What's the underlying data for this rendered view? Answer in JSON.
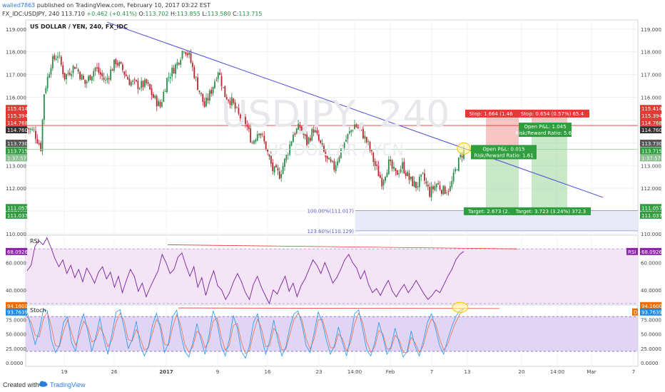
{
  "header": {
    "user": "walled7863",
    "published": "published on TradingView.com, February 10, 2017 03:22 EST",
    "symbol": "FX_IDC:USDJPY, 240",
    "last": "113.710",
    "change": "+0.462 (+0.41%)",
    "o": "113.702",
    "h": "113.855",
    "l": "113.580",
    "c": "113.715"
  },
  "footer": {
    "created_with": "Created with",
    "brand": "TradingView"
  },
  "colors": {
    "up": "#2c8c4a",
    "down": "#b7272c",
    "trend": "#4a4ad8",
    "stop": "#e53935",
    "target": "#2e9e3e",
    "rsi": "#7b1fa2",
    "stoch_k": "#2196f3",
    "stoch_d": "#e8704b",
    "fib": "#8c8ce0"
  },
  "chart_data": [
    {
      "type": "candlestick",
      "title": "US DOLLAR / YEN, 240, FX_IDC",
      "watermark": "USDJPY, 240",
      "watermark_sub": "US DOLLAR / YEN",
      "ylim": [
        110.0,
        119.4
      ],
      "yticks": [
        110.0,
        111.0,
        112.0,
        113.0,
        114.0,
        115.0,
        116.0,
        117.0,
        118.0,
        119.0
      ],
      "ytick_labels": [
        "110.000",
        "111.000",
        "112.000",
        "113.000",
        "114.000",
        "115.000",
        "116.000",
        "117.000",
        "118.000",
        "119.000"
      ],
      "xtick_labels": [
        "19",
        "26",
        "2017",
        "9",
        "16",
        "23",
        "14:00",
        "Feb",
        "7",
        "13",
        "20",
        "14:00",
        "Mar",
        "7"
      ],
      "close_path": [
        [
          0,
          114.65
        ],
        [
          4,
          114.5
        ],
        [
          8,
          113.8
        ],
        [
          10,
          116.2
        ],
        [
          14,
          117.5
        ],
        [
          18,
          117.9
        ],
        [
          22,
          116.9
        ],
        [
          28,
          117.4
        ],
        [
          34,
          116.6
        ],
        [
          40,
          117.3
        ],
        [
          46,
          116.7
        ],
        [
          52,
          117.6
        ],
        [
          56,
          117.2
        ],
        [
          60,
          116.7
        ],
        [
          66,
          116.5
        ],
        [
          70,
          116.6
        ],
        [
          74,
          116.0
        ],
        [
          78,
          115.6
        ],
        [
          82,
          116.8
        ],
        [
          88,
          117.5
        ],
        [
          92,
          118.2
        ],
        [
          95,
          117.8
        ],
        [
          100,
          116.5
        ],
        [
          104,
          115.6
        ],
        [
          108,
          116.3
        ],
        [
          112,
          117.2
        ],
        [
          116,
          116.1
        ],
        [
          120,
          115.8
        ],
        [
          124,
          115.2
        ],
        [
          128,
          114.9
        ],
        [
          132,
          114.0
        ],
        [
          136,
          114.6
        ],
        [
          140,
          113.8
        ],
        [
          144,
          112.8
        ],
        [
          148,
          112.6
        ],
        [
          152,
          113.4
        ],
        [
          156,
          114.4
        ],
        [
          160,
          114.7
        ],
        [
          164,
          114.0
        ],
        [
          168,
          114.6
        ],
        [
          172,
          113.9
        ],
        [
          176,
          113.2
        ],
        [
          180,
          112.9
        ],
        [
          184,
          113.7
        ],
        [
          188,
          114.3
        ],
        [
          192,
          114.8
        ],
        [
          196,
          114.5
        ],
        [
          200,
          113.9
        ],
        [
          204,
          113.0
        ],
        [
          208,
          112.3
        ],
        [
          212,
          113.1
        ],
        [
          216,
          112.6
        ],
        [
          220,
          113.0
        ],
        [
          224,
          112.4
        ],
        [
          228,
          112.1
        ],
        [
          232,
          112.5
        ],
        [
          236,
          111.8
        ],
        [
          240,
          112.2
        ],
        [
          244,
          111.9
        ],
        [
          248,
          112.0
        ],
        [
          252,
          113.0
        ],
        [
          256,
          113.7
        ]
      ],
      "last_index": 256,
      "annotations": {
        "stop_long": "Stop: 1.664 (1.46",
        "stop_short": "Stop: 0.654 (0.57%) 65.4",
        "pnl_long": "Open P&L: 0.015",
        "rr_long": "Risk/Reward Ratio: 1.61",
        "pnl_short": "Open P&L: 1.045",
        "rr_short": "Risk/Reward Ratio: 5.69",
        "target_long": "Target: 2.673 (2.",
        "target_short": "Target: 3.723 (3.24%) 372.3",
        "fib_100": "100.00%(111.017)",
        "fib_123": "123.60%(110.129)"
      },
      "price_tags": {
        "stop_a": "115.414",
        "stop_b": "115.394",
        "red_a": "114.768",
        "red_b": "114.760",
        "last_a": "113.730",
        "last_b": "113.715",
        "countdown": "1:37:57",
        "tgt_a": "111.057",
        "tgt_b": "111.037"
      }
    },
    {
      "type": "line",
      "title": "RSI",
      "ylim": [
        30,
        80
      ],
      "yticks": [
        40.0,
        60.0
      ],
      "ytick_labels": [
        "40.0000",
        "60.0000"
      ],
      "last_label": "68.0926",
      "tag": "RSI",
      "series": [
        {
          "values": [
            54,
            58,
            72,
            76,
            73,
            78,
            71,
            63,
            57,
            62,
            52,
            58,
            49,
            55,
            46,
            56,
            51,
            45,
            53,
            57,
            48,
            53,
            42,
            50,
            38,
            47,
            55,
            50,
            39,
            45,
            35,
            42,
            48,
            54,
            66,
            60,
            52,
            55,
            64,
            67,
            58,
            50,
            57,
            42,
            49,
            36,
            46,
            54,
            43,
            40,
            33,
            38,
            46,
            52,
            46,
            38,
            33,
            44,
            50,
            42,
            36,
            30,
            40,
            37,
            44,
            50,
            39,
            45,
            35,
            43,
            48,
            55,
            62,
            58,
            52,
            60,
            53,
            45,
            49,
            55,
            62,
            66,
            60,
            56,
            48,
            54,
            44,
            38,
            41,
            36,
            42,
            47,
            39,
            35,
            40,
            44,
            38,
            42,
            47,
            42,
            37,
            33,
            36,
            40,
            38,
            44,
            50,
            55,
            62,
            66,
            68.1
          ]
        }
      ]
    },
    {
      "type": "line",
      "title": "Stoch",
      "ylim": [
        -6,
        100
      ],
      "yticks": [
        0,
        25,
        50,
        75
      ],
      "ytick_labels": [
        "0.0000",
        "25.0000",
        "50.0000",
        "75.0000"
      ],
      "last_k_label": "94.1600",
      "last_d_label": "93.7639",
      "tag": "D",
      "series": [
        {
          "name": "%K",
          "values": [
            88,
            60,
            32,
            55,
            92,
            90,
            40,
            18,
            30,
            70,
            80,
            35,
            20,
            62,
            85,
            55,
            20,
            45,
            78,
            40,
            15,
            50,
            88,
            92,
            60,
            25,
            40,
            72,
            30,
            12,
            28,
            65,
            86,
            58,
            18,
            35,
            80,
            91,
            50,
            20,
            10,
            35,
            68,
            40,
            15,
            48,
            90,
            70,
            30,
            12,
            40,
            82,
            60,
            20,
            8,
            30,
            70,
            85,
            45,
            15,
            38,
            74,
            40,
            12,
            28,
            62,
            85,
            90,
            66,
            30,
            18,
            52,
            88,
            70,
            40,
            15,
            30,
            62,
            35,
            12,
            45,
            85,
            92,
            58,
            22,
            12,
            35,
            70,
            45,
            15,
            28,
            60,
            35,
            10,
            20,
            55,
            28,
            12,
            38,
            70,
            85,
            60,
            30,
            15,
            40,
            62,
            80,
            90,
            94.2
          ]
        },
        {
          "name": "%D",
          "values": [
            80,
            70,
            48,
            45,
            75,
            88,
            62,
            30,
            28,
            55,
            74,
            52,
            30,
            50,
            72,
            62,
            36,
            40,
            62,
            48,
            28,
            40,
            70,
            86,
            72,
            40,
            38,
            58,
            42,
            22,
            26,
            52,
            75,
            66,
            32,
            30,
            62,
            84,
            65,
            32,
            18,
            28,
            55,
            48,
            26,
            38,
            72,
            78,
            45,
            22,
            30,
            65,
            68,
            36,
            16,
            22,
            52,
            76,
            58,
            28,
            30,
            60,
            50,
            22,
            24,
            50,
            75,
            86,
            74,
            42,
            24,
            42,
            74,
            76,
            52,
            26,
            26,
            50,
            42,
            20,
            35,
            68,
            86,
            70,
            36,
            18,
            28,
            56,
            50,
            24,
            24,
            48,
            40,
            18,
            18,
            44,
            34,
            18,
            30,
            58,
            76,
            68,
            42,
            22,
            32,
            52,
            70,
            84,
            93.8
          ]
        }
      ]
    }
  ]
}
